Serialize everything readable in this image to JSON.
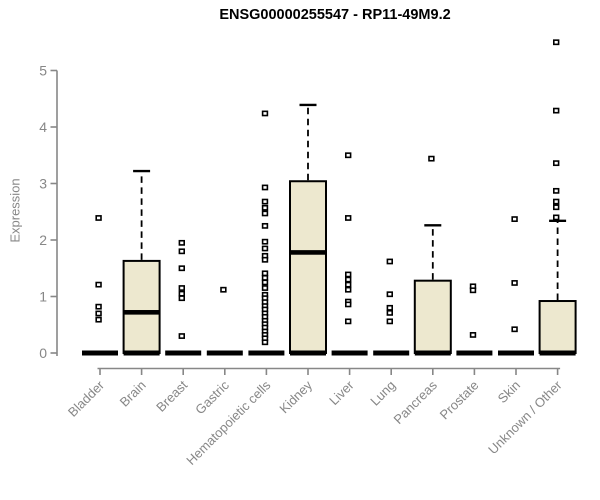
{
  "chart_data": {
    "type": "boxplot",
    "title": "ENSG00000255547 - RP11-49M9.2",
    "xlabel": "",
    "ylabel": "Expression",
    "ylim": [
      0,
      5.6
    ],
    "yticks": [
      0,
      1,
      2,
      3,
      4,
      5
    ],
    "grid": false,
    "legend": "none",
    "colors": {
      "box_fill": "#EDE8CF",
      "box_stroke": "#000000",
      "axis": "#878787",
      "title_color": "#000000"
    },
    "categories": [
      "Bladder",
      "Brain",
      "Breast",
      "Gastric",
      "Hematopoietic cells",
      "Kidney",
      "Liver",
      "Lung",
      "Pancreas",
      "Prostate",
      "Skin",
      "Unknown / Other"
    ],
    "boxes": [
      {
        "category": "Bladder",
        "q1": 0,
        "median": 0,
        "q3": 0,
        "whisker_high": 0,
        "outliers": [
          2.39,
          1.21,
          0.82,
          0.7,
          0.59
        ]
      },
      {
        "category": "Brain",
        "q1": 0,
        "median": 0.72,
        "q3": 1.63,
        "whisker_high": 3.22,
        "outliers": []
      },
      {
        "category": "Breast",
        "q1": 0,
        "median": 0,
        "q3": 0,
        "whisker_high": 0,
        "outliers": [
          1.95,
          1.8,
          1.5,
          1.15,
          1.05,
          0.97,
          0.3
        ]
      },
      {
        "category": "Gastric",
        "q1": 0,
        "median": 0,
        "q3": 0,
        "whisker_high": 0,
        "outliers": [
          1.12
        ]
      },
      {
        "category": "Hematopoietic cells",
        "q1": 0,
        "median": 0,
        "q3": 0,
        "whisker_high": 0,
        "outliers": [
          4.24,
          2.93,
          2.68,
          2.57,
          2.47,
          2.25,
          1.97,
          1.85,
          1.72,
          1.65,
          1.41,
          1.33,
          1.25,
          1.15,
          1.03,
          0.97,
          0.9,
          0.83,
          0.77,
          0.7,
          0.64,
          0.57,
          0.51,
          0.45,
          0.38,
          0.32,
          0.26,
          0.19
        ]
      },
      {
        "category": "Kidney",
        "q1": 0,
        "median": 1.78,
        "q3": 3.04,
        "whisker_high": 4.39,
        "outliers": []
      },
      {
        "category": "Liver",
        "q1": 0,
        "median": 0,
        "q3": 0,
        "whisker_high": 0,
        "outliers": [
          3.5,
          2.39,
          1.39,
          1.3,
          1.21,
          1.12,
          0.91,
          0.86,
          0.56
        ]
      },
      {
        "category": "Lung",
        "q1": 0,
        "median": 0,
        "q3": 0,
        "whisker_high": 0,
        "outliers": [
          1.62,
          1.04,
          0.8,
          0.71,
          0.56
        ]
      },
      {
        "category": "Pancreas",
        "q1": 0,
        "median": 0,
        "q3": 1.28,
        "whisker_high": 2.26,
        "outliers": [
          3.44
        ]
      },
      {
        "category": "Prostate",
        "q1": 0,
        "median": 0,
        "q3": 0,
        "whisker_high": 0,
        "outliers": [
          1.18,
          1.11,
          0.32
        ]
      },
      {
        "category": "Skin",
        "q1": 0,
        "median": 0,
        "q3": 0,
        "whisker_high": 0,
        "outliers": [
          2.37,
          1.24,
          0.42
        ]
      },
      {
        "category": "Unknown / Other",
        "q1": 0,
        "median": 0,
        "q3": 0.92,
        "whisker_high": 2.34,
        "outliers": [
          5.5,
          4.29,
          3.36,
          2.87,
          2.68,
          2.58,
          2.4
        ]
      }
    ]
  }
}
